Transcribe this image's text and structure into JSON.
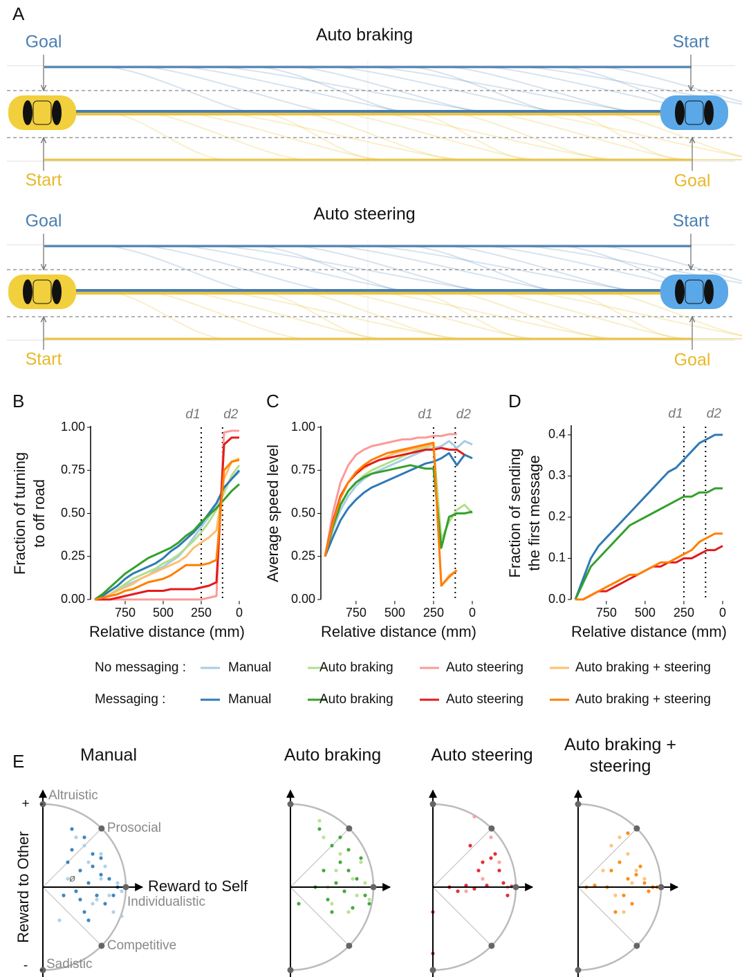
{
  "panel_labels": [
    "A",
    "B",
    "C",
    "D",
    "E"
  ],
  "panel_a": [
    {
      "title": "Auto braking",
      "labels": [
        "Goal",
        "Start",
        "Start",
        "Goal"
      ]
    },
    {
      "title": "Auto steering",
      "labels": [
        "Goal",
        "Start",
        "Start",
        "Goal"
      ]
    }
  ],
  "legend_groups": [
    "No messaging :",
    "Messaging :"
  ],
  "chart_data": [
    {
      "type": "line",
      "ylabel": [
        "Fraction of turning",
        "to off road"
      ],
      "xlabel": "Relative distance (mm)",
      "x": [
        950,
        900,
        850,
        800,
        750,
        700,
        650,
        600,
        550,
        500,
        450,
        400,
        350,
        300,
        250,
        200,
        150,
        100,
        50,
        0
      ],
      "xlim": [
        950,
        0
      ],
      "xticks": [
        750,
        500,
        250,
        0
      ],
      "ylim": [
        0,
        1
      ],
      "yticks": [
        {
          "value": 0,
          "label": "0.00"
        },
        {
          "value": 0.25,
          "label": "0.25"
        },
        {
          "value": 0.5,
          "label": "0.50"
        },
        {
          "value": 0.75,
          "label": "0.75"
        },
        {
          "value": 1,
          "label": "1.00"
        }
      ],
      "vlines": [
        {
          "value": 250,
          "label": "d1"
        },
        {
          "value": 110,
          "label": "d2"
        }
      ],
      "series": [
        {
          "name": "Manual",
          "color": "#a6cde3",
          "values": [
            0,
            0.01,
            0.03,
            0.05,
            0.08,
            0.1,
            0.12,
            0.14,
            0.17,
            0.19,
            0.22,
            0.25,
            0.3,
            0.36,
            0.42,
            0.48,
            0.55,
            0.65,
            0.7,
            0.74
          ]
        },
        {
          "name": "Auto braking",
          "color": "#b2df8a",
          "values": [
            0,
            0.01,
            0.03,
            0.06,
            0.09,
            0.12,
            0.14,
            0.16,
            0.18,
            0.21,
            0.23,
            0.26,
            0.3,
            0.34,
            0.39,
            0.45,
            0.52,
            0.62,
            0.72,
            0.78
          ]
        },
        {
          "name": "Auto steering",
          "color": "#fb9a99",
          "values": [
            0,
            0,
            0,
            0,
            0,
            0,
            0,
            0,
            0,
            0,
            0,
            0,
            0,
            0,
            0,
            0.01,
            0.02,
            0.97,
            0.98,
            0.98
          ]
        },
        {
          "name": "Auto braking + steering",
          "color": "#fdbf6f",
          "values": [
            0,
            0.01,
            0.03,
            0.05,
            0.07,
            0.09,
            0.12,
            0.14,
            0.16,
            0.18,
            0.2,
            0.22,
            0.25,
            0.3,
            0.33,
            0.36,
            0.4,
            0.7,
            0.8,
            0.82
          ]
        },
        {
          "name": "Manual",
          "color": "#2f79b5",
          "values": [
            0,
            0.02,
            0.05,
            0.08,
            0.12,
            0.15,
            0.17,
            0.19,
            0.21,
            0.24,
            0.28,
            0.31,
            0.35,
            0.39,
            0.44,
            0.5,
            0.56,
            0.65,
            0.7,
            0.75
          ]
        },
        {
          "name": "Auto braking",
          "color": "#33a02c",
          "values": [
            0,
            0.03,
            0.07,
            0.11,
            0.15,
            0.18,
            0.21,
            0.24,
            0.26,
            0.28,
            0.3,
            0.33,
            0.37,
            0.4,
            0.45,
            0.49,
            0.53,
            0.58,
            0.63,
            0.67
          ]
        },
        {
          "name": "Auto steering",
          "color": "#e31a1c",
          "values": [
            0,
            0,
            0,
            0.01,
            0.02,
            0.03,
            0.04,
            0.05,
            0.05,
            0.05,
            0.06,
            0.06,
            0.06,
            0.06,
            0.07,
            0.08,
            0.1,
            0.9,
            0.94,
            0.94
          ]
        },
        {
          "name": "Auto braking + steering",
          "color": "#ff7f00",
          "values": [
            0,
            0.01,
            0.02,
            0.03,
            0.05,
            0.06,
            0.08,
            0.1,
            0.11,
            0.12,
            0.14,
            0.17,
            0.2,
            0.2,
            0.2,
            0.21,
            0.23,
            0.75,
            0.8,
            0.81
          ]
        }
      ]
    },
    {
      "type": "line",
      "ylabel": [
        "Average speed level"
      ],
      "xlabel": "Relative distance (mm)",
      "x": [
        950,
        900,
        850,
        800,
        750,
        700,
        650,
        600,
        550,
        500,
        450,
        400,
        350,
        300,
        250,
        200,
        150,
        100,
        50,
        0
      ],
      "xlim": [
        950,
        0
      ],
      "xticks": [
        750,
        500,
        250,
        0
      ],
      "ylim": [
        0,
        1
      ],
      "yticks": [
        {
          "value": 0,
          "label": "0.00"
        },
        {
          "value": 0.25,
          "label": "0.25"
        },
        {
          "value": 0.5,
          "label": "0.50"
        },
        {
          "value": 0.75,
          "label": "0.75"
        },
        {
          "value": 1,
          "label": "1.00"
        }
      ],
      "vlines": [
        {
          "value": 250,
          "label": "d1"
        },
        {
          "value": 110,
          "label": "d2"
        }
      ],
      "series": [
        {
          "name": "Manual",
          "color": "#a6cde3",
          "values": [
            0.25,
            0.4,
            0.52,
            0.6,
            0.66,
            0.7,
            0.73,
            0.75,
            0.77,
            0.79,
            0.81,
            0.83,
            0.85,
            0.87,
            0.88,
            0.89,
            0.92,
            0.88,
            0.92,
            0.9
          ]
        },
        {
          "name": "Auto braking",
          "color": "#b2df8a",
          "values": [
            0.25,
            0.42,
            0.55,
            0.63,
            0.68,
            0.72,
            0.75,
            0.77,
            0.79,
            0.81,
            0.83,
            0.85,
            0.87,
            0.88,
            0.9,
            0.35,
            0.45,
            0.52,
            0.55,
            0.5
          ]
        },
        {
          "name": "Auto steering",
          "color": "#fb9a99",
          "values": [
            0.25,
            0.5,
            0.68,
            0.78,
            0.84,
            0.87,
            0.89,
            0.9,
            0.91,
            0.92,
            0.93,
            0.93,
            0.94,
            0.94,
            0.95,
            0.95,
            0.96,
            0.96,
            null,
            null
          ]
        },
        {
          "name": "Auto braking + steering",
          "color": "#fdbf6f",
          "values": [
            0.25,
            0.45,
            0.6,
            0.68,
            0.73,
            0.76,
            0.79,
            0.81,
            0.83,
            0.85,
            0.86,
            0.87,
            0.88,
            0.89,
            0.9,
            0.08,
            0.14,
            0.17,
            null,
            null
          ]
        },
        {
          "name": "Manual",
          "color": "#2f79b5",
          "values": [
            0.25,
            0.36,
            0.46,
            0.53,
            0.58,
            0.62,
            0.65,
            0.67,
            0.69,
            0.71,
            0.73,
            0.75,
            0.77,
            0.79,
            0.8,
            0.82,
            0.85,
            0.78,
            0.84,
            0.82
          ]
        },
        {
          "name": "Auto braking",
          "color": "#33a02c",
          "values": [
            0.25,
            0.42,
            0.55,
            0.63,
            0.68,
            0.71,
            0.73,
            0.74,
            0.75,
            0.76,
            0.77,
            0.78,
            0.77,
            0.76,
            0.76,
            0.3,
            0.48,
            0.5,
            0.5,
            0.51
          ]
        },
        {
          "name": "Auto steering",
          "color": "#e31a1c",
          "values": [
            0.25,
            0.45,
            0.6,
            0.68,
            0.73,
            0.77,
            0.79,
            0.81,
            0.82,
            0.83,
            0.84,
            0.85,
            0.86,
            0.87,
            0.87,
            0.88,
            0.87,
            0.87,
            0.84,
            null
          ]
        },
        {
          "name": "Auto braking + steering",
          "color": "#ff7f00",
          "values": [
            0.25,
            0.44,
            0.59,
            0.68,
            0.74,
            0.78,
            0.81,
            0.83,
            0.85,
            0.86,
            0.87,
            0.88,
            0.89,
            0.9,
            0.91,
            0.08,
            0.13,
            0.17,
            null,
            null
          ]
        }
      ]
    },
    {
      "type": "line",
      "ylabel": [
        "Fraction of sending",
        "the first message"
      ],
      "xlabel": "Relative distance (mm)",
      "x": [
        950,
        900,
        850,
        800,
        750,
        700,
        650,
        600,
        550,
        500,
        450,
        400,
        350,
        300,
        250,
        200,
        150,
        100,
        50,
        0
      ],
      "xlim": [
        950,
        0
      ],
      "xticks": [
        750,
        500,
        250,
        0
      ],
      "ylim": [
        0,
        0.42
      ],
      "yticks": [
        {
          "value": 0,
          "label": "0.0"
        },
        {
          "value": 0.1,
          "label": "0.1"
        },
        {
          "value": 0.2,
          "label": "0.2"
        },
        {
          "value": 0.3,
          "label": "0.3"
        },
        {
          "value": 0.4,
          "label": "0.4"
        }
      ],
      "vlines": [
        {
          "value": 250,
          "label": "d1"
        },
        {
          "value": 110,
          "label": "d2"
        }
      ],
      "series": [
        {
          "name": "Manual",
          "color": "#2f79b5",
          "values": [
            0,
            0.05,
            0.1,
            0.13,
            0.15,
            0.17,
            0.19,
            0.21,
            0.23,
            0.25,
            0.27,
            0.29,
            0.31,
            0.32,
            0.34,
            0.36,
            0.38,
            0.39,
            0.4,
            0.4
          ]
        },
        {
          "name": "Auto braking",
          "color": "#33a02c",
          "values": [
            0,
            0.04,
            0.08,
            0.1,
            0.12,
            0.14,
            0.16,
            0.18,
            0.19,
            0.2,
            0.21,
            0.22,
            0.23,
            0.24,
            0.25,
            0.25,
            0.26,
            0.26,
            0.27,
            0.27
          ]
        },
        {
          "name": "Auto steering",
          "color": "#e31a1c",
          "values": [
            0,
            0,
            0.01,
            0.02,
            0.02,
            0.03,
            0.04,
            0.05,
            0.06,
            0.07,
            0.08,
            0.08,
            0.09,
            0.09,
            0.1,
            0.1,
            0.11,
            0.12,
            0.12,
            0.13
          ]
        },
        {
          "name": "Auto braking + steering",
          "color": "#ff7f00",
          "values": [
            0,
            0,
            0.01,
            0.02,
            0.03,
            0.04,
            0.05,
            0.06,
            0.06,
            0.07,
            0.08,
            0.09,
            0.09,
            0.1,
            0.11,
            0.12,
            0.14,
            0.15,
            0.16,
            0.16
          ]
        }
      ]
    },
    {
      "type": "scatter",
      "title": "Manual",
      "xlabel": "Reward to Self",
      "ylabel": [
        "Reward to Other"
      ],
      "annotations": [
        "Altruistic",
        "Prosocial",
        "Individualistic",
        "Competitive",
        "Sadistic"
      ],
      "angle_label": "ø",
      "xlim": [
        0,
        1
      ],
      "ylim": [
        -1,
        1
      ],
      "yticks": [
        {
          "value": 1,
          "label": "+"
        },
        {
          "value": -1,
          "label": "-"
        }
      ],
      "series": [
        {
          "color": "#a6cde3",
          "x": [
            0.55,
            0.7,
            0.8,
            0.9,
            0.6,
            0.75,
            0.85,
            0.95,
            0.5,
            0.65,
            0.3,
            0.95,
            0.4,
            0.7,
            0.2
          ],
          "y": [
            0.3,
            0.1,
            -0.1,
            0.05,
            -0.2,
            0.25,
            -0.3,
            -0.05,
            0.5,
            -0.15,
            0.1,
            -0.35,
            0.6,
            0.4,
            -0.4
          ]
        },
        {
          "color": "#2f79b5",
          "x": [
            0.35,
            0.5,
            0.6,
            0.45,
            0.7,
            0.55,
            0.8,
            0.4,
            0.65,
            0.3,
            0.75,
            0.5,
            0.9,
            0.35,
            0.6,
            0.45,
            0.7,
            0.25,
            0.55,
            0.85
          ],
          "y": [
            0.7,
            0.6,
            0.4,
            0.2,
            0.15,
            0.05,
            0.1,
            -0.05,
            -0.1,
            0.3,
            -0.2,
            -0.3,
            0,
            0.45,
            0.25,
            -0.15,
            0.35,
            -0.1,
            -0.4,
            -0.1
          ]
        }
      ]
    },
    {
      "type": "scatter",
      "title": "Auto braking",
      "xlim": [
        0,
        1
      ],
      "ylim": [
        -1,
        1
      ],
      "series": [
        {
          "color": "#b2df8a",
          "x": [
            0.4,
            0.6,
            0.75,
            0.5,
            0.8,
            0.9,
            0.55,
            0.35,
            0.7,
            0.95,
            0.45,
            0.85
          ],
          "y": [
            0.6,
            0.4,
            0.1,
            -0.2,
            -0.1,
            0.05,
            0.2,
            0.8,
            -0.3,
            -0.15,
            0,
            0.3
          ]
        },
        {
          "color": "#33a02c",
          "x": [
            0.35,
            0.5,
            0.6,
            0.7,
            0.55,
            0.65,
            0.8,
            0.45,
            0.9,
            0.75,
            0.4,
            0.6,
            0.85,
            0.3,
            0.95,
            0.5,
            0.7,
            0.1
          ],
          "y": [
            0.7,
            0.5,
            0.3,
            0.2,
            0.05,
            -0.05,
            0.1,
            -0.15,
            -0.1,
            -0.25,
            0.2,
            0.6,
            0.35,
            0,
            -0.2,
            -0.3,
            0.45,
            -0.2
          ]
        }
      ]
    },
    {
      "type": "scatter",
      "title": "Auto steering",
      "xlim": [
        0,
        1
      ],
      "ylim": [
        -1,
        1
      ],
      "series": [
        {
          "color": "#fb9a99",
          "x": [
            0.5,
            0.7,
            0.8,
            0.6,
            0.9,
            0.4
          ],
          "y": [
            0.85,
            0.6,
            0.3,
            0.1,
            0,
            -0.05
          ]
        },
        {
          "color": "#e31a1c",
          "x": [
            0.2,
            0.4,
            0.5,
            0.6,
            0.7,
            0.75,
            0.8,
            0.85,
            0.9,
            0.55,
            0.65,
            0.3,
            0.45,
            0.95,
            0,
            0
          ],
          "y": [
            0,
            0.02,
            -0.02,
            0.3,
            0.35,
            0.4,
            0.2,
            0.05,
            -0.1,
            0.2,
            0.02,
            -0.05,
            0.5,
            0.01,
            -0.3,
            -0.8
          ]
        }
      ]
    },
    {
      "type": "scatter",
      "title": "Auto braking + steering",
      "xlim": [
        0,
        1
      ],
      "ylim": [
        -1,
        1
      ],
      "series": [
        {
          "color": "#fdbf6f",
          "x": [
            0.4,
            0.5,
            0.6,
            0.7,
            0.8,
            0.9,
            0.45,
            0.55,
            0.65,
            0.3
          ],
          "y": [
            0.5,
            0.6,
            0.4,
            0.2,
            0.1,
            0,
            -0.1,
            -0.3,
            0.05,
            0.2
          ]
        },
        {
          "color": "#ff7f00",
          "x": [
            0.4,
            0.5,
            0.6,
            0.7,
            0.8,
            0.9,
            0.35,
            0.55,
            0.65,
            0.75,
            0.85,
            0.2,
            0.45,
            0.6,
            0.1,
            0.95
          ],
          "y": [
            0.2,
            0.3,
            0.1,
            0.15,
            0.05,
            0,
            0,
            -0.1,
            -0.2,
            0.25,
            -0.05,
            0.02,
            -0.3,
            0.65,
            0,
            0
          ]
        }
      ]
    }
  ]
}
